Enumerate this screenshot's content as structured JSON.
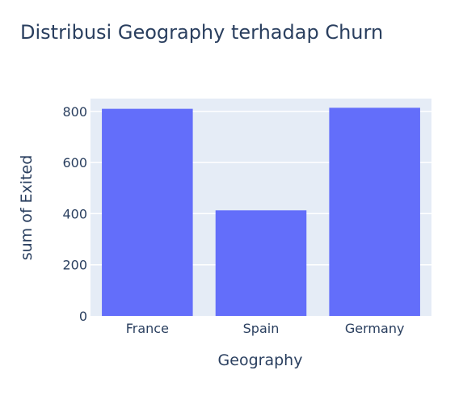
{
  "chart_data": {
    "type": "bar",
    "title": "Distribusi Geography terhadap Churn",
    "xlabel": "Geography",
    "ylabel": "sum of Exited",
    "categories": [
      "France",
      "Spain",
      "Germany"
    ],
    "values": [
      810,
      413,
      814
    ],
    "ylim": [
      0,
      850
    ],
    "yticks": [
      0,
      200,
      400,
      600,
      800
    ],
    "grid": true,
    "legend": "none",
    "colors": {
      "bar": "#636efa",
      "plot_background": "#e5ecf6",
      "gridline": "#ffffff",
      "text": "#2a3f5f"
    }
  }
}
